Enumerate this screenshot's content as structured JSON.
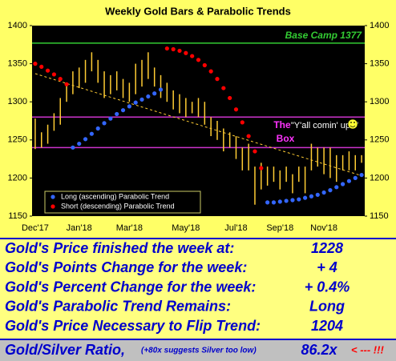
{
  "chart_data": {
    "type": "parabolic-bars",
    "title": "Weekly Gold Bars & Parabolic Trends",
    "categories": [
      "Dec'17",
      null,
      null,
      null,
      null,
      null,
      null,
      "Jan'18",
      null,
      null,
      null,
      null,
      null,
      null,
      null,
      "Mar'18",
      null,
      null,
      null,
      null,
      null,
      null,
      null,
      null,
      "May'18",
      null,
      null,
      null,
      null,
      null,
      null,
      null,
      "Jul'18",
      null,
      null,
      null,
      null,
      null,
      null,
      "Sep'18",
      null,
      null,
      null,
      null,
      null,
      null,
      "Nov'18",
      null,
      null,
      null,
      null,
      null,
      null
    ],
    "high": [
      1278,
      1260,
      1270,
      1285,
      1305,
      1325,
      1340,
      1345,
      1355,
      1365,
      1355,
      1340,
      1335,
      1340,
      1330,
      1325,
      1350,
      1355,
      1365,
      1345,
      1335,
      1325,
      1315,
      1310,
      1305,
      1300,
      1305,
      1300,
      1280,
      1275,
      1265,
      1260,
      1255,
      1240,
      1245,
      1215,
      1220,
      1215,
      1215,
      1210,
      1215,
      1205,
      1215,
      1215,
      1245,
      1240,
      1240,
      1240,
      1230,
      1230,
      1235,
      1230,
      1230
    ],
    "low": [
      1238,
      1240,
      1245,
      1262,
      1270,
      1300,
      1310,
      1318,
      1325,
      1340,
      1325,
      1305,
      1310,
      1315,
      1305,
      1300,
      1310,
      1320,
      1330,
      1320,
      1305,
      1300,
      1290,
      1285,
      1280,
      1285,
      1280,
      1270,
      1255,
      1250,
      1235,
      1240,
      1225,
      1210,
      1210,
      1165,
      1185,
      1190,
      1195,
      1185,
      1195,
      1180,
      1195,
      1180,
      1210,
      1215,
      1205,
      1200,
      1195,
      1210,
      1210,
      1210,
      1220
    ],
    "bar_color": "#ffcc33",
    "series": [
      {
        "name": "Long (ascending) Parabolic Trend",
        "color": "#3366ff",
        "values": [
          null,
          null,
          null,
          null,
          null,
          null,
          1240,
          1245,
          1251,
          1258,
          1265,
          1272,
          1278,
          1284,
          1289,
          1294,
          1299,
          1303,
          1307,
          1311,
          1316,
          null,
          null,
          null,
          null,
          null,
          null,
          null,
          null,
          null,
          null,
          null,
          null,
          null,
          null,
          null,
          null,
          1168,
          1168,
          1169,
          1170,
          1171,
          1172,
          1174,
          1176,
          1178,
          1181,
          1184,
          1188,
          1192,
          1196,
          1200,
          1204
        ]
      },
      {
        "name": "Short (descending) Parabolic Trend",
        "color": "#ff0000",
        "values": [
          1350,
          1346,
          1341,
          1336,
          1330,
          1323,
          null,
          null,
          null,
          null,
          null,
          null,
          null,
          null,
          null,
          null,
          null,
          null,
          null,
          null,
          null,
          1370,
          1369,
          1367,
          1364,
          1360,
          1355,
          1348,
          1340,
          1330,
          1318,
          1305,
          1290,
          1273,
          1255,
          1235,
          1213,
          null,
          null,
          null,
          null,
          null,
          null,
          null,
          null,
          null,
          null,
          null,
          null,
          null,
          null,
          null,
          null
        ]
      }
    ],
    "trendline": [
      1337,
      1203
    ],
    "hlines": [
      {
        "value": 1377,
        "color": "#33cc33",
        "label": "Base Camp 1377"
      },
      {
        "value": 1280,
        "color": "#cc33cc"
      },
      {
        "value": 1240,
        "color": "#cc33cc"
      }
    ],
    "annotations": [
      {
        "text": "The",
        "color": "#ff33ff"
      },
      {
        "text": "Box",
        "color": "#ff33ff"
      },
      {
        "text": "\"Y'all comin' up?\"",
        "color": "#ffffff"
      }
    ],
    "ylim": [
      1150,
      1400
    ],
    "yticks": [
      1150,
      1200,
      1250,
      1300,
      1350,
      1400
    ]
  },
  "table": {
    "rows": [
      [
        "Gold's Price finished the week at:",
        "1228"
      ],
      [
        "Gold's Points Change for the week:",
        "+ 4"
      ],
      [
        "Gold's Percent Change for the week:",
        "+ 0.4%"
      ],
      [
        "Gold's Parabolic Trend Remains:",
        "Long"
      ],
      [
        "Gold's Price Necessary to Flip Trend:",
        "1204"
      ]
    ],
    "ratio": {
      "label": "Gold/Silver Ratio,",
      "note": "(+80x suggests Silver too low)",
      "value": "86.2x",
      "flag": "< --- !!!"
    }
  }
}
